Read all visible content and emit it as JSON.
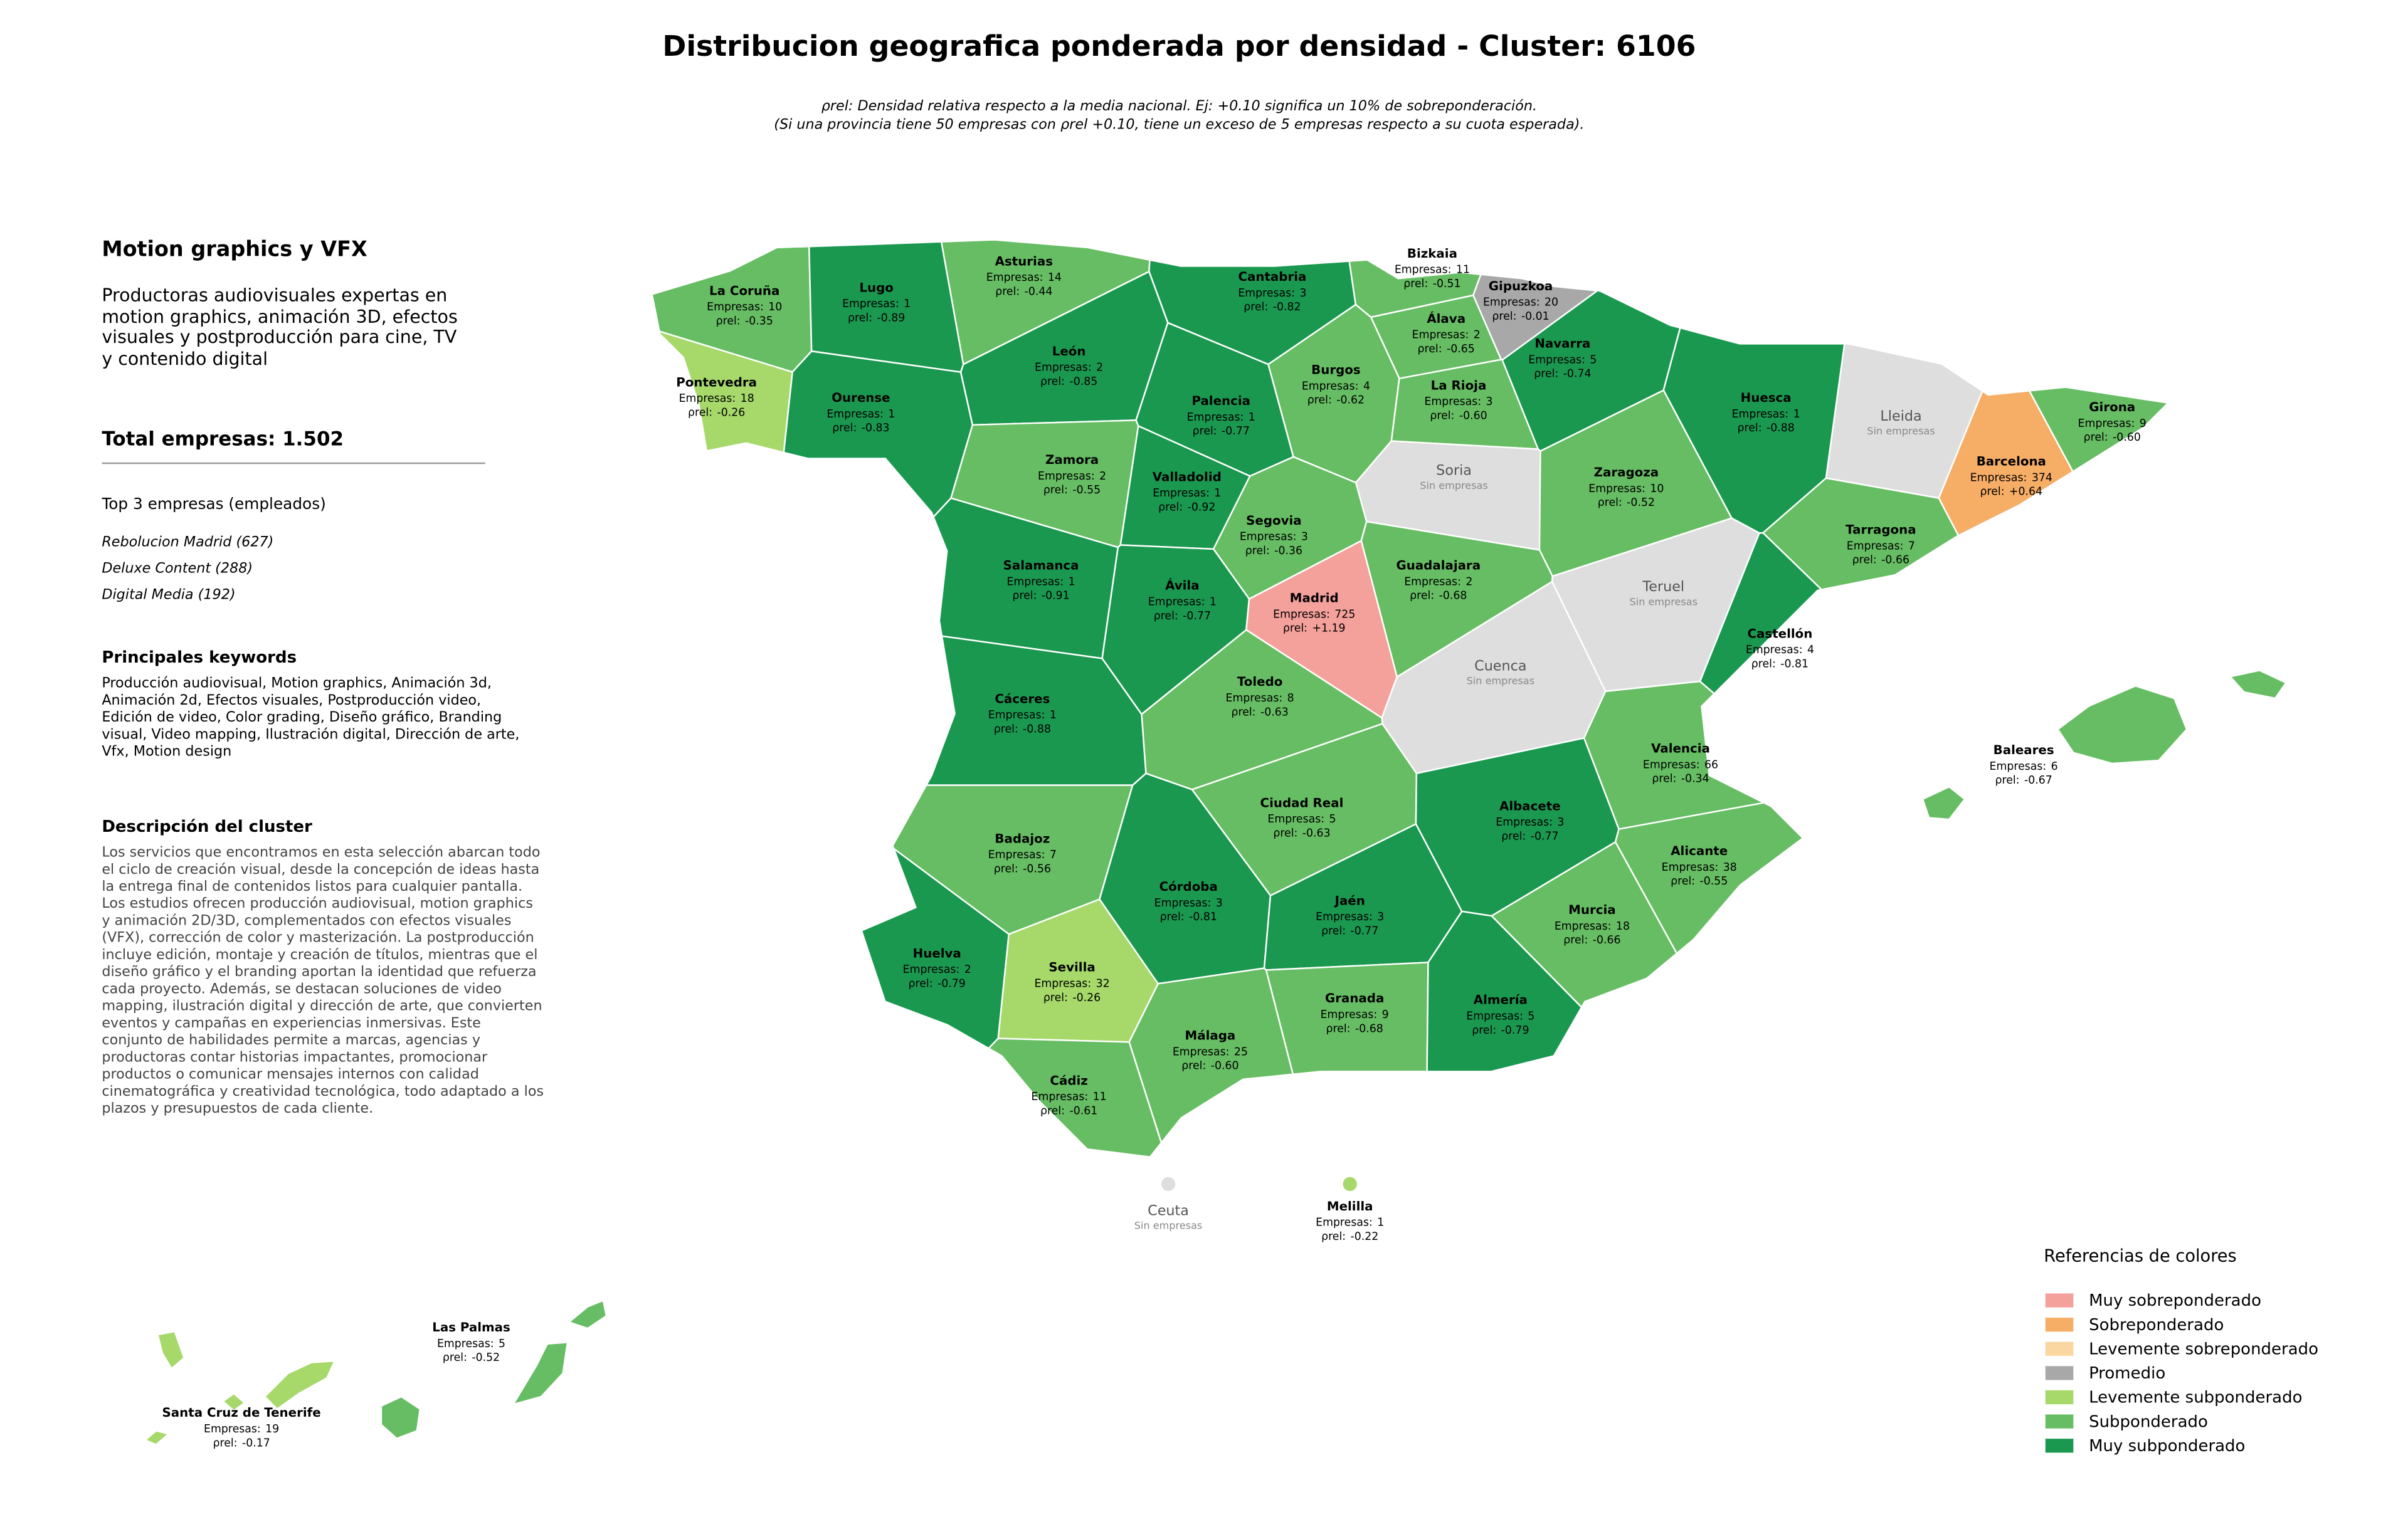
{
  "title": "Distribucion geografica ponderada por densidad - Cluster: 6106",
  "subtitle": [
    "ρrel: Densidad relativa respecto a la media nacional. Ej: +0.10 significa un 10% de sobreponderación.",
    "(Si una provincia tiene 50 empresas con ρrel +0.10, tiene un exceso de 5 empresas respecto a su cuota esperada)."
  ],
  "panel": {
    "title": "Motion graphics y VFX",
    "description": "Productoras audiovisuales expertas en motion graphics, animación 3D, efectos visuales y postproducción para cine, TV y contenido digital",
    "total": "Total empresas: 1.502",
    "top3_title": "Top 3 empresas (empleados)",
    "top3": [
      "Rebolucion Madrid (627)",
      "Deluxe Content (288)",
      "Digital Media (192)"
    ],
    "keywords_title": "Principales keywords",
    "keywords": "Producción audiovisual, Motion graphics, Animación 3d, Animación 2d, Efectos visuales, Postproducción video, Edición de video, Color grading, Diseño gráfico, Branding visual, Video mapping, Ilustración digital, Dirección de arte, Vfx, Motion design",
    "cluster_title": "Descripción del cluster",
    "cluster_description": "Los servicios que encontramos en esta selección abarcan todo el ciclo de creación visual, desde la concepción de ideas hasta la entrega final de contenidos listos para cualquier pantalla. Los estudios ofrecen producción audiovisual, motion graphics y animación 2D/3D, complementados con efectos visuales (VFX), corrección de color y masterización. La postproducción incluye edición, montaje y creación de títulos, mientras que el diseño gráfico y el branding aportan la identidad que refuerza cada proyecto. Además, se destacan soluciones de video mapping, ilustración digital y dirección de arte, que convierten eventos y campañas en experiencias inmersivas. Este conjunto de habilidades permite a marcas, agencias y productoras contar historias impactantes, promocionar productos o comunicar mensajes internos con calidad cinematográfica y creatividad tecnológica, todo adaptado a los plazos y presupuestos de cada cliente."
  },
  "count_prefix": "Empresas:",
  "rho_prefix": "ρrel:",
  "no_companies": "Sin empresas",
  "no_data_color": "#dedede",
  "legend": {
    "title": "Referencias de colores",
    "categories": [
      {
        "name": "Muy sobreponderado",
        "color": "#f4a09b"
      },
      {
        "name": "Sobreponderado",
        "color": "#f6ad66"
      },
      {
        "name": "Levemente sobreponderado",
        "color": "#fad7a0"
      },
      {
        "name": "Promedio",
        "color": "#a8a8a8"
      },
      {
        "name": "Levemente subponderado",
        "color": "#a6d96a"
      },
      {
        "name": "Subponderado",
        "color": "#66bd63"
      },
      {
        "name": "Muy subponderado",
        "color": "#1a9850"
      }
    ]
  },
  "provinces": [
    {
      "name": "La Coruña",
      "empresas": 10,
      "rho": -0.35,
      "rho_label": "-0.35",
      "category": 5
    },
    {
      "name": "Lugo",
      "empresas": 1,
      "rho": -0.89,
      "rho_label": "-0.89",
      "category": 6
    },
    {
      "name": "Asturias",
      "empresas": 14,
      "rho": -0.44,
      "rho_label": "-0.44",
      "category": 5
    },
    {
      "name": "Cantabria",
      "empresas": 3,
      "rho": -0.82,
      "rho_label": "-0.82",
      "category": 6
    },
    {
      "name": "Bizkaia",
      "empresas": 11,
      "rho": -0.51,
      "rho_label": "-0.51",
      "category": 5
    },
    {
      "name": "Gipuzkoa",
      "empresas": 20,
      "rho": -0.01,
      "rho_label": "-0.01",
      "category": 3
    },
    {
      "name": "Álava",
      "empresas": 2,
      "rho": -0.65,
      "rho_label": "-0.65",
      "category": 5
    },
    {
      "name": "Navarra",
      "empresas": 5,
      "rho": -0.74,
      "rho_label": "-0.74",
      "category": 6
    },
    {
      "name": "Pontevedra",
      "empresas": 18,
      "rho": -0.26,
      "rho_label": "-0.26",
      "category": 4
    },
    {
      "name": "Ourense",
      "empresas": 1,
      "rho": -0.83,
      "rho_label": "-0.83",
      "category": 6
    },
    {
      "name": "León",
      "empresas": 2,
      "rho": -0.85,
      "rho_label": "-0.85",
      "category": 6
    },
    {
      "name": "Palencia",
      "empresas": 1,
      "rho": -0.77,
      "rho_label": "-0.77",
      "category": 6
    },
    {
      "name": "Burgos",
      "empresas": 4,
      "rho": -0.62,
      "rho_label": "-0.62",
      "category": 5
    },
    {
      "name": "La Rioja",
      "empresas": 3,
      "rho": -0.6,
      "rho_label": "-0.60",
      "category": 5
    },
    {
      "name": "Huesca",
      "empresas": 1,
      "rho": -0.88,
      "rho_label": "-0.88",
      "category": 6
    },
    {
      "name": "Lleida"
    },
    {
      "name": "Girona",
      "empresas": 9,
      "rho": -0.6,
      "rho_label": "-0.60",
      "category": 5
    },
    {
      "name": "Barcelona",
      "empresas": 374,
      "rho": 0.64,
      "rho_label": "+0.64",
      "category": 1
    },
    {
      "name": "Zamora",
      "empresas": 2,
      "rho": -0.55,
      "rho_label": "-0.55",
      "category": 5
    },
    {
      "name": "Soria"
    },
    {
      "name": "Zaragoza",
      "empresas": 10,
      "rho": -0.52,
      "rho_label": "-0.52",
      "category": 5
    },
    {
      "name": "Valladolid",
      "empresas": 1,
      "rho": -0.92,
      "rho_label": "-0.92",
      "category": 6
    },
    {
      "name": "Segovia",
      "empresas": 3,
      "rho": -0.36,
      "rho_label": "-0.36",
      "category": 5
    },
    {
      "name": "Tarragona",
      "empresas": 7,
      "rho": -0.66,
      "rho_label": "-0.66",
      "category": 5
    },
    {
      "name": "Salamanca",
      "empresas": 1,
      "rho": -0.91,
      "rho_label": "-0.91",
      "category": 6
    },
    {
      "name": "Guadalajara",
      "empresas": 2,
      "rho": -0.68,
      "rho_label": "-0.68",
      "category": 5
    },
    {
      "name": "Ávila",
      "empresas": 1,
      "rho": -0.77,
      "rho_label": "-0.77",
      "category": 6
    },
    {
      "name": "Madrid",
      "empresas": 725,
      "rho": 1.19,
      "rho_label": "+1.19",
      "category": 0
    },
    {
      "name": "Teruel"
    },
    {
      "name": "Castellón",
      "empresas": 4,
      "rho": -0.81,
      "rho_label": "-0.81",
      "category": 6
    },
    {
      "name": "Cuenca"
    },
    {
      "name": "Toledo",
      "empresas": 8,
      "rho": -0.63,
      "rho_label": "-0.63",
      "category": 5
    },
    {
      "name": "Cáceres",
      "empresas": 1,
      "rho": -0.88,
      "rho_label": "-0.88",
      "category": 6
    },
    {
      "name": "Valencia",
      "empresas": 66,
      "rho": -0.34,
      "rho_label": "-0.34",
      "category": 5
    },
    {
      "name": "Baleares",
      "empresas": 6,
      "rho": -0.67,
      "rho_label": "-0.67",
      "category": 5
    },
    {
      "name": "Ciudad Real",
      "empresas": 5,
      "rho": -0.63,
      "rho_label": "-0.63",
      "category": 5
    },
    {
      "name": "Albacete",
      "empresas": 3,
      "rho": -0.77,
      "rho_label": "-0.77",
      "category": 6
    },
    {
      "name": "Badajoz",
      "empresas": 7,
      "rho": -0.56,
      "rho_label": "-0.56",
      "category": 5
    },
    {
      "name": "Alicante",
      "empresas": 38,
      "rho": -0.55,
      "rho_label": "-0.55",
      "category": 5
    },
    {
      "name": "Córdoba",
      "empresas": 3,
      "rho": -0.81,
      "rho_label": "-0.81",
      "category": 6
    },
    {
      "name": "Jaén",
      "empresas": 3,
      "rho": -0.77,
      "rho_label": "-0.77",
      "category": 6
    },
    {
      "name": "Murcia",
      "empresas": 18,
      "rho": -0.66,
      "rho_label": "-0.66",
      "category": 5
    },
    {
      "name": "Huelva",
      "empresas": 2,
      "rho": -0.79,
      "rho_label": "-0.79",
      "category": 6
    },
    {
      "name": "Sevilla",
      "empresas": 32,
      "rho": -0.26,
      "rho_label": "-0.26",
      "category": 4
    },
    {
      "name": "Granada",
      "empresas": 9,
      "rho": -0.68,
      "rho_label": "-0.68",
      "category": 5
    },
    {
      "name": "Almería",
      "empresas": 5,
      "rho": -0.79,
      "rho_label": "-0.79",
      "category": 6
    },
    {
      "name": "Málaga",
      "empresas": 25,
      "rho": -0.6,
      "rho_label": "-0.60",
      "category": 5
    },
    {
      "name": "Cádiz",
      "empresas": 11,
      "rho": -0.61,
      "rho_label": "-0.61",
      "category": 5
    },
    {
      "name": "Ceuta"
    },
    {
      "name": "Melilla",
      "empresas": 1,
      "rho": -0.22,
      "rho_label": "-0.22",
      "category": 4
    },
    {
      "name": "Las Palmas",
      "empresas": 5,
      "rho": -0.52,
      "rho_label": "-0.52",
      "category": 5
    },
    {
      "name": "Santa Cruz de Tenerife",
      "empresas": 19,
      "rho": -0.17,
      "rho_label": "-0.17",
      "category": 4
    }
  ]
}
